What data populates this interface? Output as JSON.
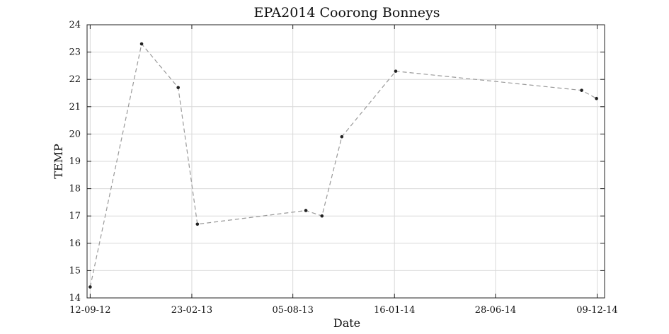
{
  "chart_data": {
    "type": "line",
    "title": "EPA2014 Coorong Bonneys",
    "xlabel": "Date",
    "ylabel": "TEMP",
    "x_tick_labels": [
      "12-09-12",
      "23-02-13",
      "05-08-13",
      "16-01-14",
      "28-06-14",
      "09-12-14"
    ],
    "x_ticks": [
      "2012-09-12",
      "2013-02-23",
      "2013-08-05",
      "2014-01-16",
      "2014-06-28",
      "2014-12-09"
    ],
    "y_ticks": [
      14,
      15,
      16,
      17,
      18,
      19,
      20,
      21,
      22,
      23,
      24
    ],
    "xlim": [
      "2012-09-07",
      "2014-12-21"
    ],
    "ylim": [
      14,
      24
    ],
    "grid": true,
    "line_style": "dashed",
    "line_color": "#9a9a9a",
    "marker_color": "#222222",
    "series": [
      {
        "x": [
          "2012-09-12",
          "2012-12-04",
          "2013-02-01",
          "2013-03-04",
          "2013-08-26",
          "2013-09-21",
          "2013-10-23",
          "2014-01-18",
          "2014-11-14",
          "2014-12-08"
        ],
        "values": [
          14.4,
          23.3,
          21.7,
          16.7,
          17.2,
          17.0,
          19.9,
          22.3,
          21.6,
          21.3
        ]
      }
    ]
  }
}
